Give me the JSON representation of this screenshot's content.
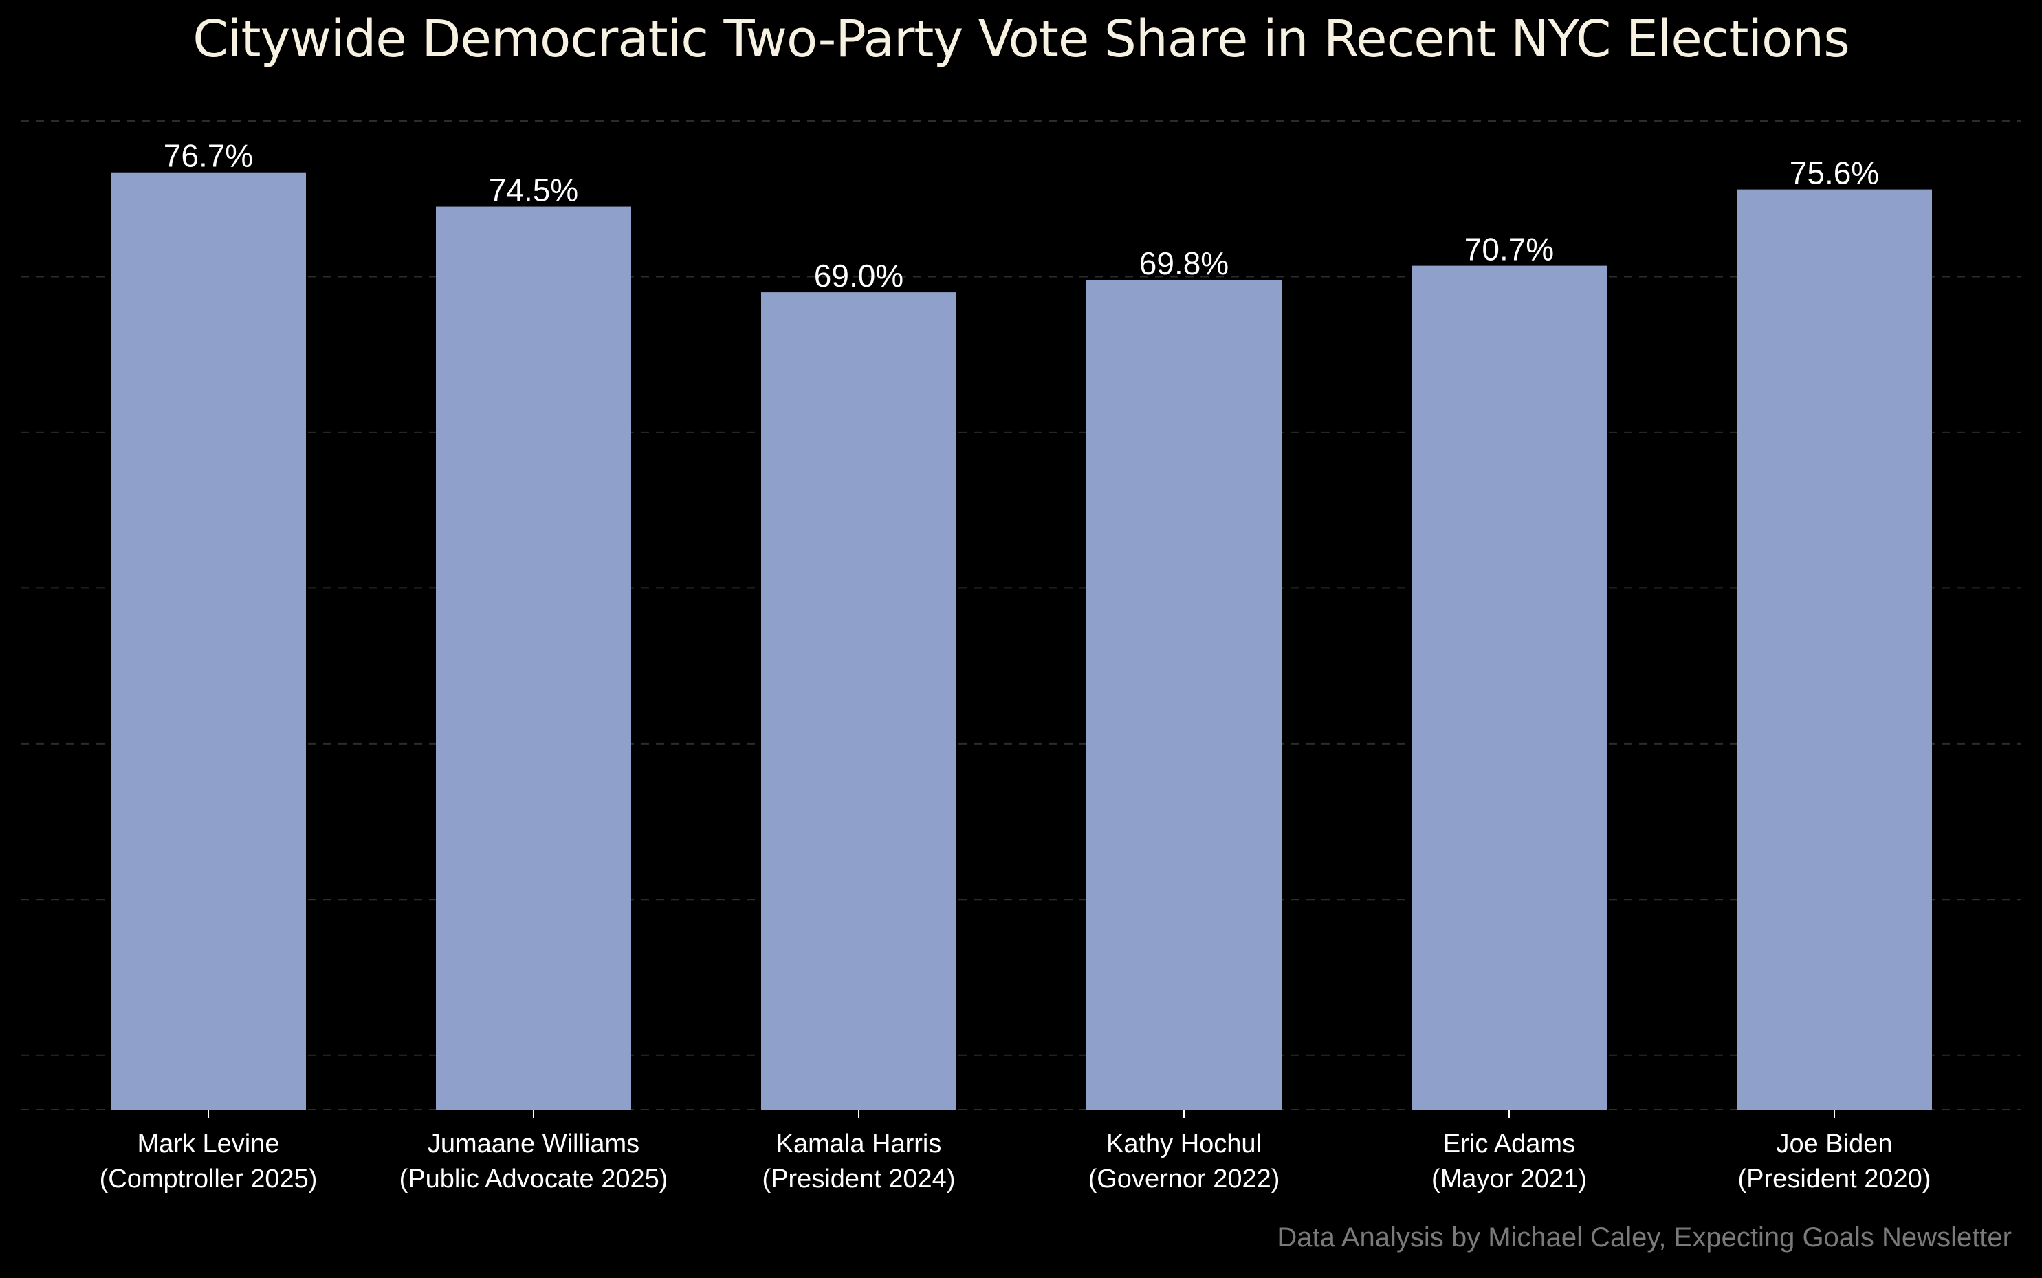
{
  "chart_data": {
    "type": "bar",
    "title": "Citywide Democratic Two-Party Vote Share in Recent NYC Elections",
    "categories": [
      [
        "Mark Levine",
        "(Comptroller 2025)"
      ],
      [
        "Jumaane Williams",
        "(Public Advocate 2025)"
      ],
      [
        "Kamala Harris",
        "(President 2024)"
      ],
      [
        "Kathy Hochul",
        "(Governor 2022)"
      ],
      [
        "Eric Adams",
        "(Mayor 2021)"
      ],
      [
        "Joe Biden",
        "(President 2020)"
      ]
    ],
    "values": [
      76.7,
      74.5,
      69.0,
      69.8,
      70.7,
      75.6
    ],
    "value_labels": [
      "76.7%",
      "74.5%",
      "69.0%",
      "69.8%",
      "70.7%",
      "75.6%"
    ],
    "ylim": [
      16.5,
      80
    ],
    "gridlines": [
      20,
      30,
      40,
      50,
      60,
      70,
      80
    ],
    "grid": true,
    "xlabel": "",
    "ylabel": "",
    "bar_color": "#8fa0cb",
    "grid_color": "#2c2c2c",
    "title_color": "#f7f1e1",
    "credit_color": "#7a7a7a"
  },
  "credit": "Data Analysis by Michael Caley, Expecting Goals Newsletter"
}
